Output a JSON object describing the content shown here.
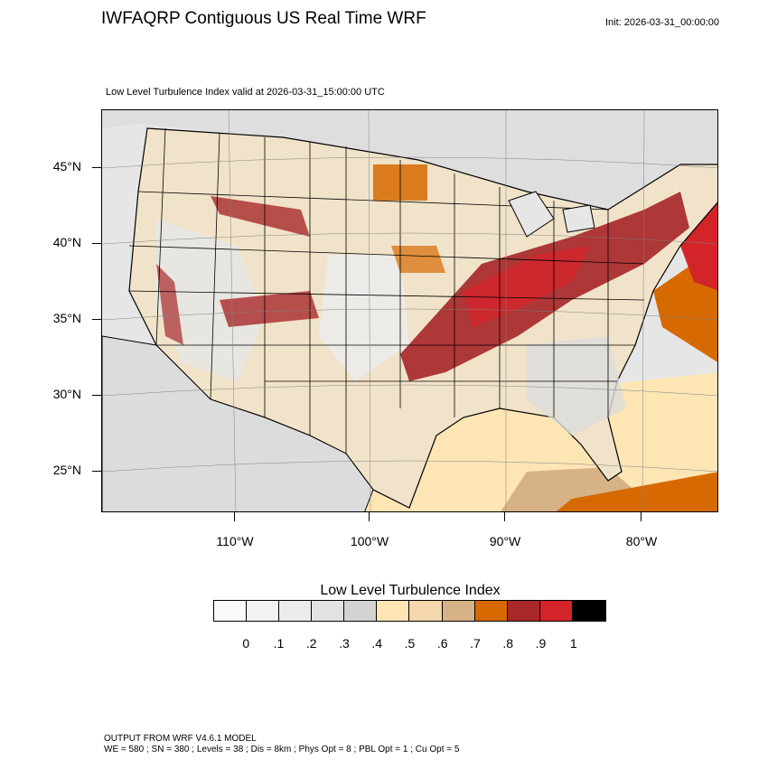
{
  "header": {
    "title": "IWFAQRP Contiguous US Real Time WRF",
    "init": "Init: 2026-03-31_00:00:00",
    "subtitle": "Low Level Turbulence Index valid at 2026-03-31_15:00:00 UTC"
  },
  "map": {
    "lat_labels": [
      "45°N",
      "40°N",
      "35°N",
      "30°N",
      "25°N"
    ],
    "lon_labels": [
      "110°W",
      "100°W",
      "90°W",
      "80°W"
    ],
    "region": "Contiguous United States"
  },
  "colorbar": {
    "title": "Low Level Turbulence Index",
    "labels": [
      "0",
      ".1",
      ".2",
      ".3",
      ".4",
      ".5",
      ".6",
      ".7",
      ".8",
      ".9",
      "1"
    ],
    "colors": [
      "#fafafa",
      "#f2f2f2",
      "#ebebeb",
      "#e2e2e2",
      "#d3d3d3",
      "#fde6b4",
      "#f4d7ad",
      "#d8b287",
      "#d66a00",
      "#a8282a",
      "#d3242a",
      "#000000"
    ]
  },
  "footer": {
    "line1": "OUTPUT FROM WRF V4.6.1 MODEL",
    "line2": "WE = 580 ; SN = 380 ; Levels = 38 ; Dis = 8km ; Phys Opt = 8 ; PBL Opt = 1 ; Cu Opt = 5"
  }
}
